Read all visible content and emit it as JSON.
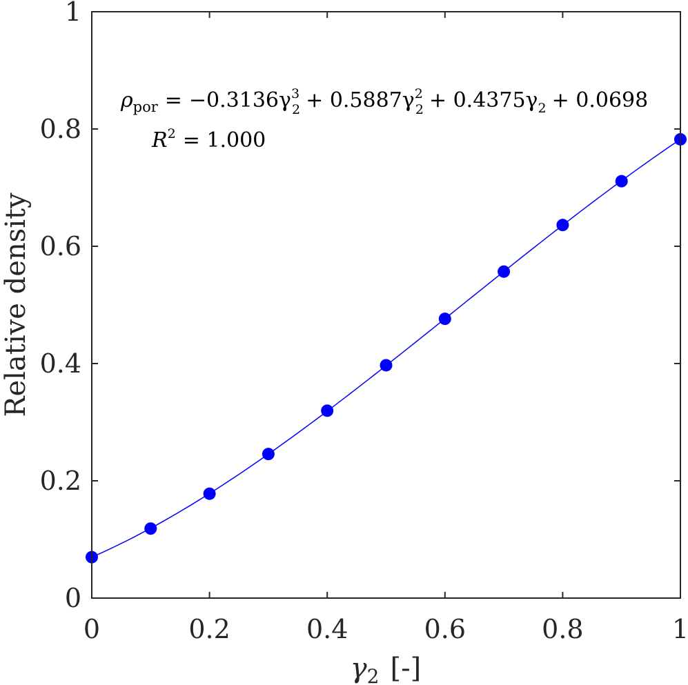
{
  "chart_data": {
    "type": "scatter",
    "xlabel_symbol": "γ",
    "xlabel_subscript": "2",
    "xlabel_unit": "[-]",
    "ylabel": "Relative density",
    "xlim": [
      0,
      1
    ],
    "ylim": [
      0,
      1
    ],
    "x_ticks": [
      0,
      0.2,
      0.4,
      0.6,
      0.8,
      1
    ],
    "y_ticks": [
      0,
      0.2,
      0.4,
      0.6,
      0.8,
      1
    ],
    "x_tick_labels": [
      "0",
      "0.2",
      "0.4",
      "0.6",
      "0.8",
      "1"
    ],
    "y_tick_labels": [
      "0",
      "0.2",
      "0.4",
      "0.6",
      "0.8",
      "1"
    ],
    "grid": false,
    "series": [
      {
        "type": "scatter",
        "color": "#0000ff",
        "x": [
          0,
          0.1,
          0.2,
          0.3,
          0.4,
          0.5,
          0.6,
          0.7,
          0.8,
          0.9,
          1.0
        ],
        "y": [
          0.0698,
          0.1186,
          0.178,
          0.2457,
          0.3196,
          0.3971,
          0.4763,
          0.5568,
          0.6363,
          0.711,
          0.7824
        ]
      },
      {
        "type": "line",
        "color": "#0000ff",
        "coefficients": [
          -0.3136,
          0.5887,
          0.4375,
          0.0698
        ]
      }
    ],
    "annotations": {
      "equation": {
        "lhs_symbol": "ρ",
        "lhs_subscript": "por",
        "eq": "=",
        "t1": "−0.3136γ",
        "t1_sup": "3",
        "t1_sub": "2",
        "t2": "+ 0.5887γ",
        "t2_sup": "2",
        "t2_sub": "2",
        "t3": "+ 0.4375γ",
        "t3_sub": "2",
        "t4": "+ 0.0698"
      },
      "r2": {
        "symbol": "R",
        "sup": "2",
        "value": "= 1.000"
      }
    }
  }
}
